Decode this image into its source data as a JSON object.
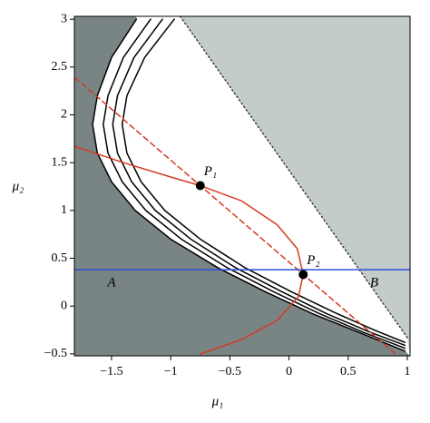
{
  "chart_data": {
    "type": "line",
    "xlabel": "μ₁",
    "ylabel": "μ₂",
    "xlim": [
      -1.814,
      1.023
    ],
    "ylim": [
      -0.52,
      3.03
    ],
    "xticks": [
      {
        "value": -1.5,
        "label": "−1.5"
      },
      {
        "value": -1,
        "label": "−1"
      },
      {
        "value": -0.5,
        "label": "−0.5"
      },
      0,
      0.5,
      1
    ],
    "yticks": [
      {
        "value": -0.5,
        "label": "−0.5"
      },
      0,
      0.5,
      1,
      1.5,
      2,
      2.5,
      3
    ],
    "regions": [
      {
        "label": "A",
        "color": "#788584",
        "x": -1.5,
        "y": 0.24
      },
      {
        "label": "B",
        "color": "#c4cbcb",
        "x": 0.72,
        "y": 0.24
      }
    ],
    "series": [
      {
        "color": "#000000",
        "style": "solid",
        "x": [
          -1.29,
          -1.5,
          -1.62,
          -1.66,
          -1.62,
          -1.5,
          -1.3,
          -1.0,
          -0.6,
          -0.2,
          0.2,
          0.6,
          0.98
        ],
        "y": [
          3.0,
          2.6,
          2.2,
          1.9,
          1.6,
          1.3,
          1.0,
          0.7,
          0.4,
          0.15,
          -0.08,
          -0.28,
          -0.47
        ]
      },
      {
        "color": "#000000",
        "style": "solid",
        "x": [
          -1.17,
          -1.4,
          -1.53,
          -1.57,
          -1.53,
          -1.41,
          -1.21,
          -0.91,
          -0.52,
          -0.13,
          0.26,
          0.64,
          0.98
        ],
        "y": [
          3.0,
          2.6,
          2.2,
          1.9,
          1.6,
          1.3,
          1.0,
          0.7,
          0.4,
          0.15,
          -0.08,
          -0.28,
          -0.44
        ]
      },
      {
        "color": "#000000",
        "style": "solid",
        "x": [
          -1.07,
          -1.31,
          -1.45,
          -1.49,
          -1.45,
          -1.33,
          -1.13,
          -0.83,
          -0.45,
          -0.06,
          0.32,
          0.68,
          0.98
        ],
        "y": [
          3.0,
          2.6,
          2.2,
          1.9,
          1.6,
          1.3,
          1.0,
          0.7,
          0.4,
          0.15,
          -0.08,
          -0.27,
          -0.41
        ]
      },
      {
        "color": "#000000",
        "style": "solid",
        "x": [
          -0.97,
          -1.22,
          -1.37,
          -1.41,
          -1.37,
          -1.25,
          -1.05,
          -0.75,
          -0.37,
          0.02,
          0.39,
          0.72,
          0.98
        ],
        "y": [
          3.0,
          2.6,
          2.2,
          1.9,
          1.6,
          1.3,
          1.0,
          0.7,
          0.4,
          0.15,
          -0.07,
          -0.25,
          -0.38
        ]
      },
      {
        "color": "#333333",
        "style": "dotted",
        "x": [
          -0.92,
          1.0
        ],
        "y": [
          3.03,
          -0.33
        ]
      },
      {
        "color": "#d63a22",
        "style": "dashed",
        "x": [
          -1.81,
          0.9
        ],
        "y": [
          2.39,
          -0.5
        ]
      },
      {
        "color": "#d63a22",
        "style": "solid",
        "x": [
          -1.81,
          -1.4,
          -1.0,
          -0.75,
          -0.4,
          -0.1,
          0.07,
          0.12,
          0.08,
          -0.1,
          -0.4,
          -0.75
        ],
        "y": [
          1.67,
          1.5,
          1.35,
          1.26,
          1.1,
          0.85,
          0.6,
          0.33,
          0.1,
          -0.15,
          -0.35,
          -0.5
        ]
      },
      {
        "color": "#2b4fd6",
        "style": "solid",
        "x": [
          -1.814,
          1.023
        ],
        "y": [
          0.38,
          0.38
        ]
      }
    ],
    "points": [
      {
        "label": "P₁",
        "x": -0.75,
        "y": 1.26
      },
      {
        "label": "P₂",
        "x": 0.12,
        "y": 0.33
      }
    ]
  }
}
